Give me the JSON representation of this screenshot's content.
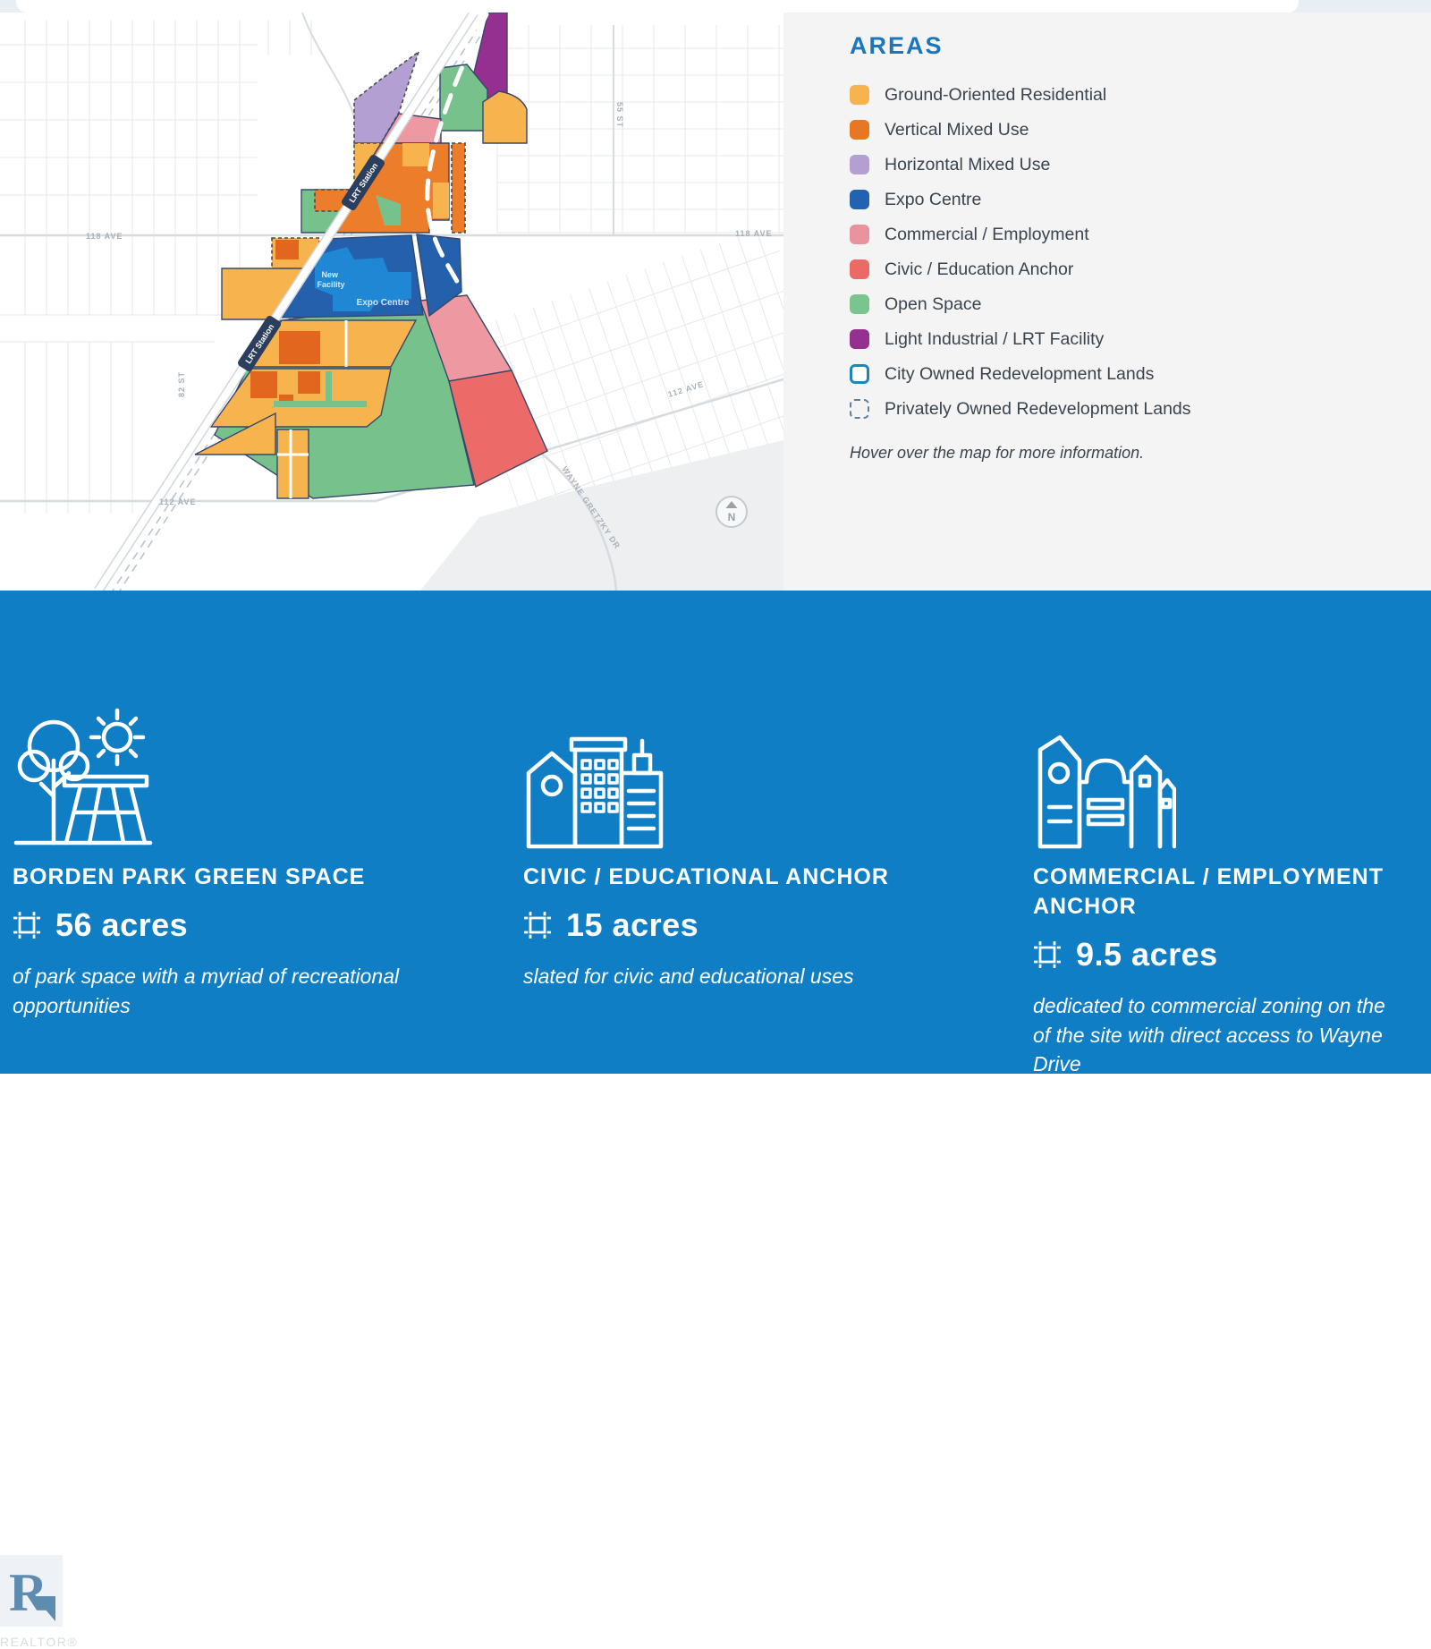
{
  "legend": {
    "title": "AREAS",
    "items": [
      {
        "label": "Ground-Oriented Residential",
        "color": "#F7B44E",
        "swatch": "fill"
      },
      {
        "label": "Vertical Mixed Use",
        "color": "#E87722",
        "swatch": "fill"
      },
      {
        "label": "Horizontal Mixed Use",
        "color": "#B49FD2",
        "swatch": "fill"
      },
      {
        "label": "Expo Centre",
        "color": "#2262AE",
        "swatch": "fill"
      },
      {
        "label": "Commercial / Employment",
        "color": "#E8939D",
        "swatch": "fill"
      },
      {
        "label": "Civic / Education Anchor",
        "color": "#EC6A65",
        "swatch": "fill"
      },
      {
        "label": "Open Space",
        "color": "#7CC48F",
        "swatch": "fill"
      },
      {
        "label": "Light Industrial / LRT Facility",
        "color": "#952F90",
        "swatch": "fill"
      },
      {
        "label": "City Owned Redevelopment Lands",
        "color": "#1C86B8",
        "swatch": "outline"
      },
      {
        "label": "Privately Owned Redevelopment Lands",
        "color": "#60809B",
        "swatch": "dashed-outline"
      }
    ],
    "note": "Hover over the map for more information."
  },
  "map": {
    "zone_labels": {
      "new_facility_line1": "New",
      "new_facility_line2": "Facility",
      "expo_centre": "Expo Centre"
    },
    "station_label": "LRT Station",
    "street_labels": {
      "ave_118_left": "118 AVE",
      "ave_118_right": "118 AVE",
      "ave_112_left": "112 AVE",
      "ave_112_diag": "112 AVE",
      "wayne_gretzky": "WAYNE GRETZKY DR",
      "st_55": "55 ST",
      "st_82": "82 ST"
    },
    "compass": "N"
  },
  "colors": {
    "residential": "#F7B44E",
    "vertical_mixed": "#EC7D2B",
    "vertical_mixed_dark": "#E2661E",
    "horizontal_mixed": "#B49FD2",
    "expo": "#2460AB",
    "expo_inner": "#1F87D4",
    "commercial": "#EE98A1",
    "civic": "#EC6B68",
    "open_space": "#77C28C",
    "industrial": "#952F90",
    "stats_background": "#0F7EC5",
    "legend_title": "#1B76BD"
  },
  "stats": {
    "cards": [
      {
        "icon": "park-icon",
        "title": "BORDEN PARK GREEN SPACE",
        "value": "56 acres",
        "description_lines": [
          "of park space with a myriad of recreational",
          "opportunities"
        ]
      },
      {
        "icon": "civic-buildings-icon",
        "title": "CIVIC / EDUCATIONAL ANCHOR",
        "value": "15 acres",
        "description_lines": [
          "slated for civic and educational uses"
        ]
      },
      {
        "icon": "commercial-buildings-icon",
        "title": "COMMERCIAL / EMPLOYMENT ANCHOR",
        "value": "9.5 acres",
        "description_lines": [
          "dedicated to commercial zoning on the",
          "of the site with direct access to Wayne",
          "Drive"
        ]
      }
    ]
  },
  "watermark": {
    "logo": "R",
    "text": "REALTOR®"
  }
}
